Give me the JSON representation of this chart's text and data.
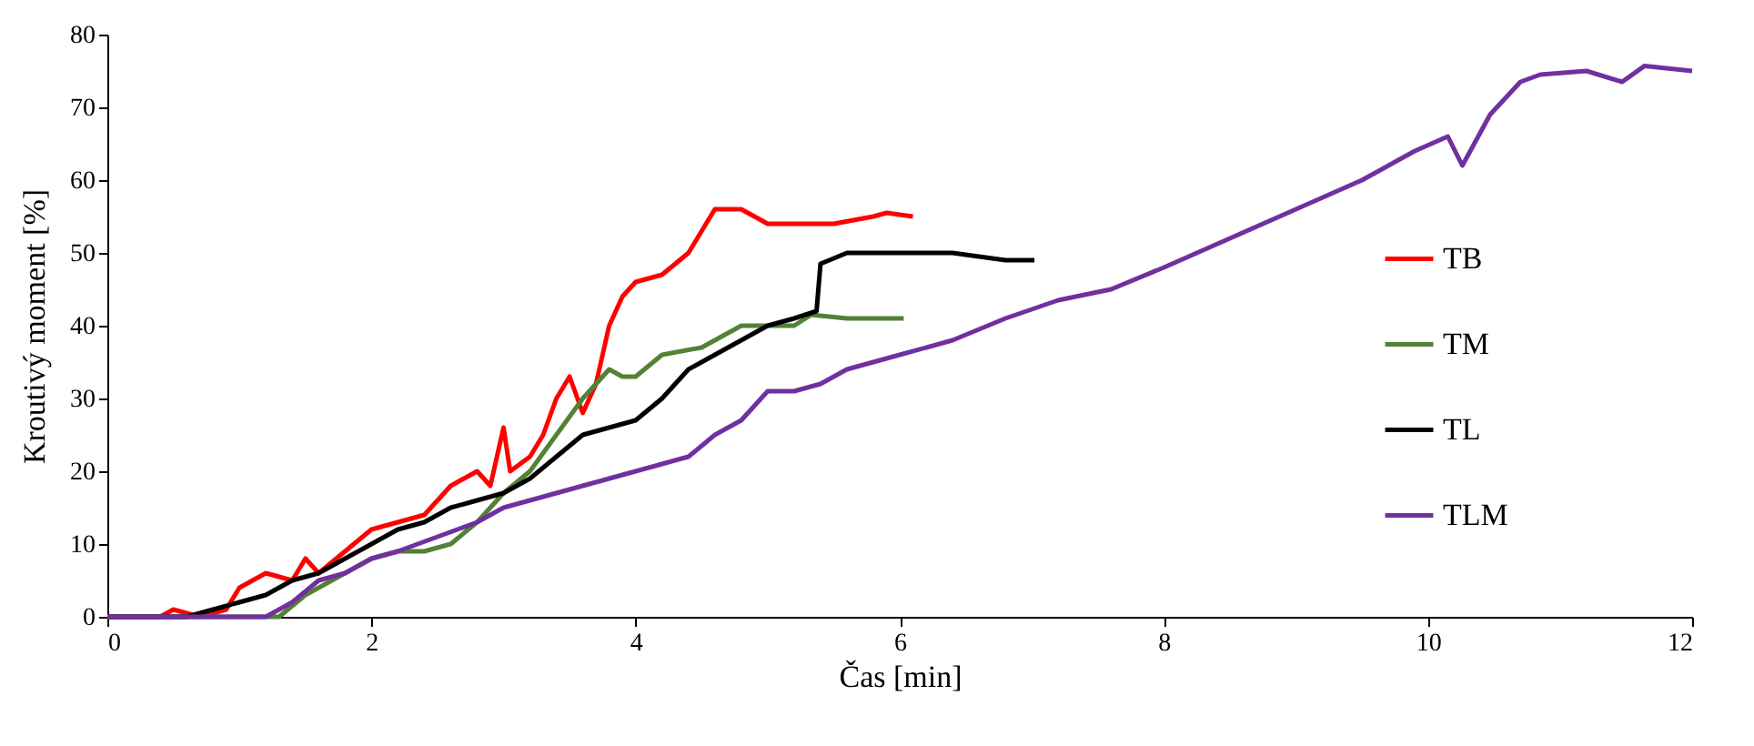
{
  "chart_data": {
    "type": "line",
    "xlabel": "Čas [min]",
    "ylabel": "Kroutivý moment [%]",
    "xlim": [
      0,
      12
    ],
    "xticks": [
      0,
      2,
      4,
      6,
      8,
      10,
      12
    ],
    "ylim": [
      0,
      80
    ],
    "yticks": [
      0,
      10,
      20,
      30,
      40,
      50,
      60,
      70,
      80
    ],
    "grid": false,
    "legend": "right",
    "marker": "none",
    "line_style": "solid",
    "series": [
      {
        "name": "TB",
        "color": "#ff0000",
        "x": [
          0,
          0.4,
          0.5,
          0.7,
          0.9,
          1.0,
          1.2,
          1.4,
          1.5,
          1.6,
          1.8,
          2.0,
          2.2,
          2.4,
          2.6,
          2.8,
          2.9,
          3.0,
          3.05,
          3.2,
          3.3,
          3.4,
          3.5,
          3.6,
          3.7,
          3.8,
          3.9,
          4.0,
          4.2,
          4.4,
          4.5,
          4.6,
          4.8,
          5.0,
          5.5,
          5.8,
          5.9,
          6.1
        ],
        "values": [
          0,
          0,
          1,
          0,
          1,
          4,
          6,
          5,
          8,
          6,
          9,
          12,
          13,
          14,
          18,
          20,
          18,
          26,
          20,
          22,
          25,
          30,
          33,
          28,
          32,
          40,
          44,
          46,
          47,
          50,
          53,
          56,
          56,
          54,
          54,
          55,
          55.5,
          55
        ]
      },
      {
        "name": "TM",
        "color": "#538135",
        "x": [
          0,
          1.3,
          1.5,
          1.8,
          2.0,
          2.2,
          2.4,
          2.6,
          2.8,
          3.0,
          3.2,
          3.4,
          3.6,
          3.8,
          3.9,
          4.0,
          4.2,
          4.5,
          4.8,
          5.2,
          5.33,
          5.6,
          6.03
        ],
        "values": [
          0,
          0,
          3,
          6,
          8,
          9,
          9,
          10,
          13,
          17,
          20,
          25,
          30,
          34,
          33,
          33,
          36,
          37,
          40,
          40,
          41.5,
          41,
          41
        ]
      },
      {
        "name": "TL",
        "color": "#000000",
        "x": [
          0,
          0.6,
          0.8,
          1.0,
          1.2,
          1.4,
          1.6,
          1.8,
          2.0,
          2.2,
          2.4,
          2.6,
          2.8,
          3.0,
          3.2,
          3.4,
          3.6,
          3.8,
          4.0,
          4.2,
          4.4,
          4.6,
          4.8,
          5.0,
          5.2,
          5.37,
          5.4,
          5.6,
          6.0,
          6.4,
          6.8,
          7.02
        ],
        "values": [
          0,
          0,
          1,
          2,
          3,
          5,
          6,
          8,
          10,
          12,
          13,
          15,
          16,
          17,
          19,
          22,
          25,
          26,
          27,
          30,
          34,
          36,
          38,
          40,
          41,
          42,
          48.5,
          50,
          50,
          50,
          49,
          49
        ]
      },
      {
        "name": "TLM",
        "color": "#7030a0",
        "x": [
          0,
          1.2,
          1.4,
          1.6,
          1.8,
          2.0,
          2.2,
          2.5,
          2.8,
          3.0,
          3.2,
          3.4,
          3.6,
          3.8,
          4.0,
          4.2,
          4.4,
          4.6,
          4.8,
          5.0,
          5.2,
          5.4,
          5.6,
          6.0,
          6.4,
          6.8,
          7.2,
          7.6,
          8.0,
          8.5,
          9.0,
          9.5,
          9.9,
          10.15,
          10.26,
          10.47,
          10.7,
          10.85,
          11.2,
          11.47,
          11.64,
          12.0
        ],
        "values": [
          0,
          0,
          2,
          5,
          6,
          8,
          9,
          11,
          13,
          15,
          16,
          17,
          18,
          19,
          20,
          21,
          22,
          25,
          27,
          31,
          31,
          32,
          34,
          36,
          38,
          41,
          43.5,
          45,
          48,
          52,
          56,
          60,
          64,
          66,
          62,
          69,
          73.5,
          74.5,
          75,
          73.5,
          75.7,
          75
        ]
      }
    ]
  }
}
